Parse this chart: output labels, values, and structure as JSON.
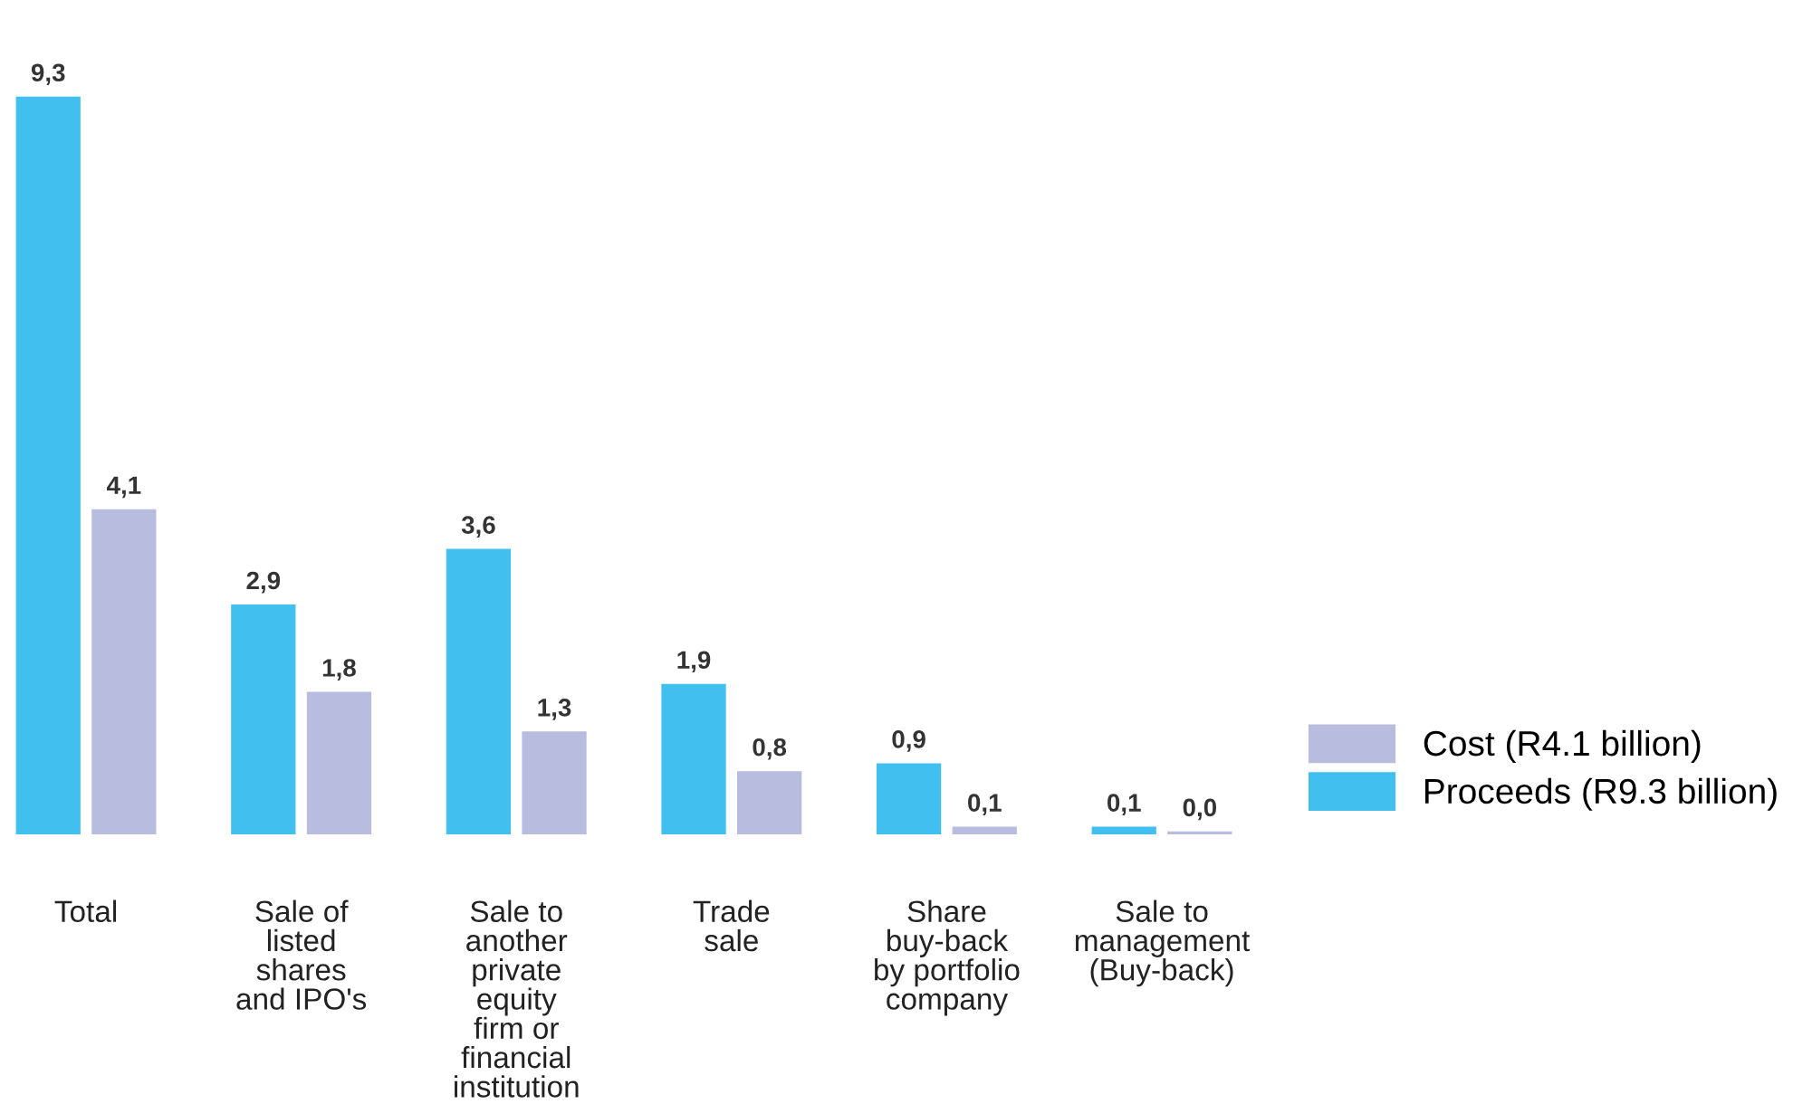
{
  "chart_data": {
    "type": "bar",
    "categories": [
      "Total",
      "Sale of\nlisted\nshares\nand IPO's",
      "Sale to\nanother\nprivate\nequity\nfirm or\nfinancial\ninstitution",
      "Trade\nsale",
      "Share\nbuy-back\nby portfolio\ncompany",
      "Sale to\nmanagement\n(Buy-back)"
    ],
    "series": [
      {
        "name": "Proceeds (R9.3 billion)",
        "color": "#41c0f0",
        "values": [
          9.3,
          2.9,
          3.6,
          1.9,
          0.9,
          0.1
        ],
        "value_labels": [
          "9,3",
          "2,9",
          "3,6",
          "1,9",
          "0,9",
          "0,1"
        ]
      },
      {
        "name": "Cost (R4.1 billion)",
        "color": "#b8bde0",
        "values": [
          4.1,
          1.8,
          1.3,
          0.8,
          0.1,
          0.04
        ],
        "value_labels": [
          "4,1",
          "1,8",
          "1,3",
          "0,8",
          "0,1",
          "0,0"
        ]
      }
    ],
    "legend": "right",
    "grid": false
  }
}
